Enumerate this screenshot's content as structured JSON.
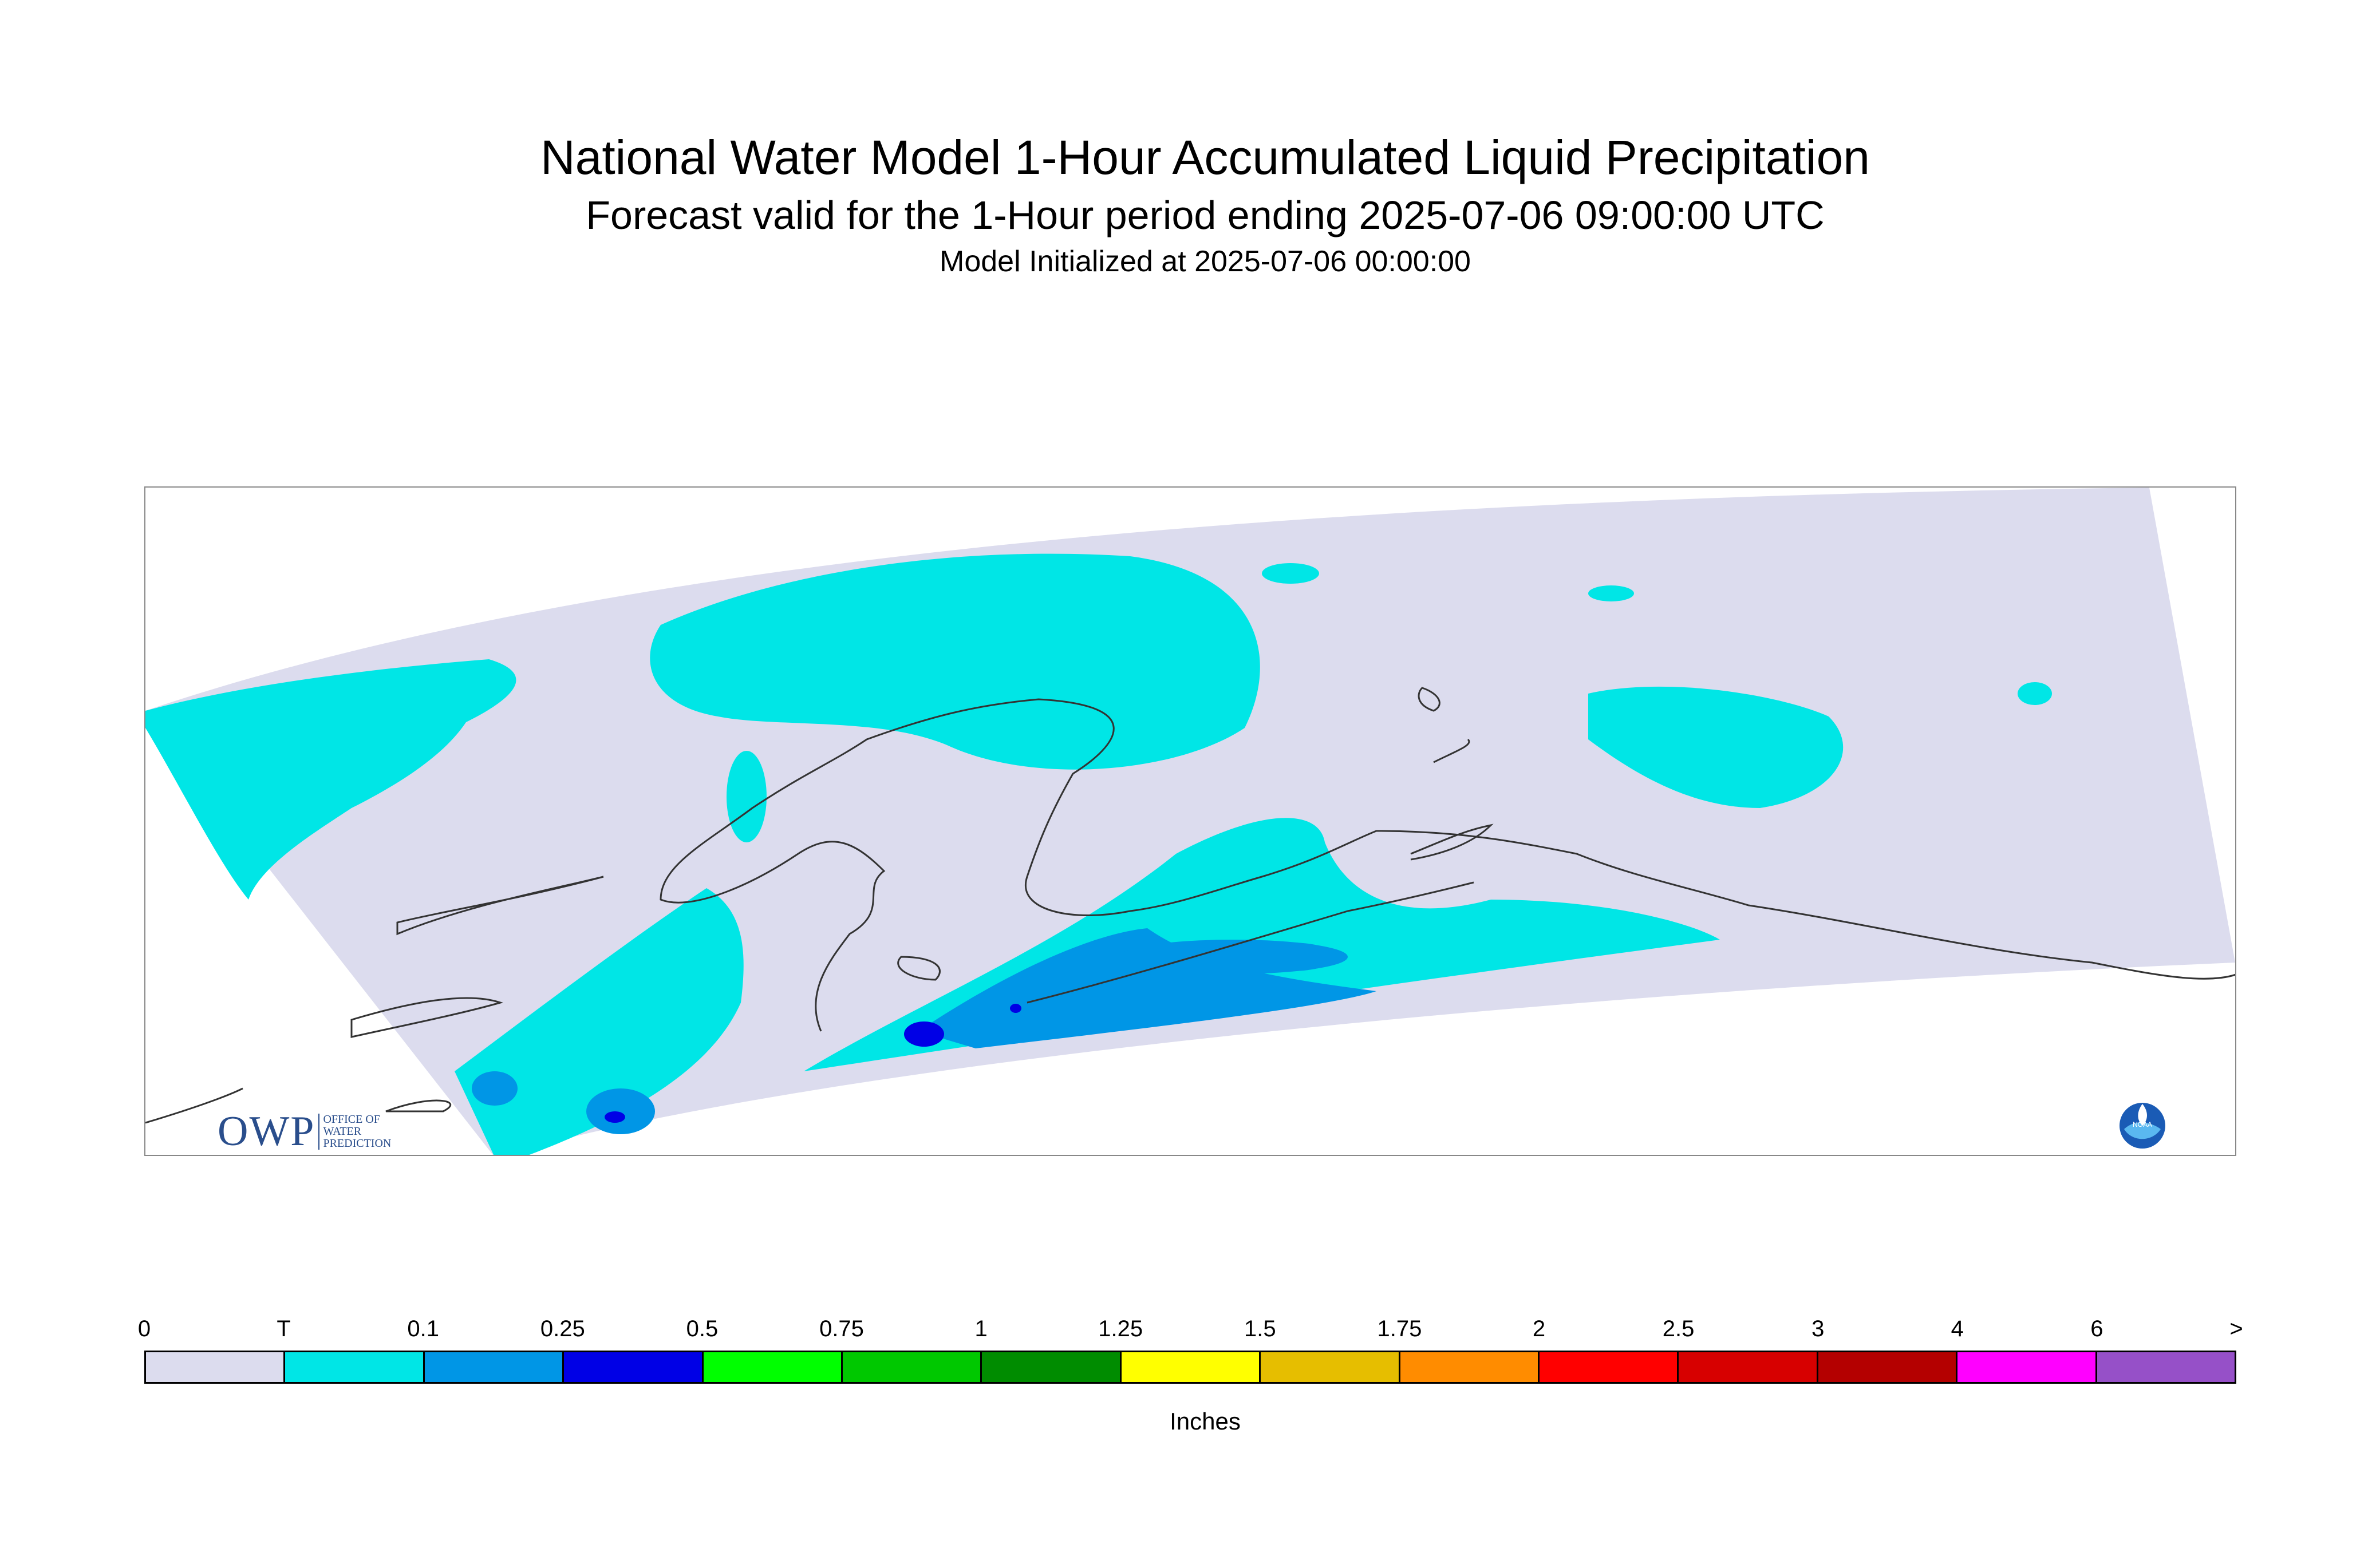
{
  "header": {
    "title": "National Water Model 1-Hour Accumulated Liquid Precipitation",
    "subtitle": "Forecast valid for the 1-Hour period ending 2025-07-06 09:00:00 UTC",
    "init": "Model Initialized at 2025-07-06 00:00:00"
  },
  "logos": {
    "owp_big": "OWP",
    "owp_small_1": "OFFICE OF",
    "owp_small_2": "WATER",
    "owp_small_3": "PREDICTION",
    "noaa": "NOAA"
  },
  "legend": {
    "labels": [
      "0",
      "T",
      "0.1",
      "0.25",
      "0.5",
      "0.75",
      "1",
      "1.25",
      "1.5",
      "1.75",
      "2",
      "2.5",
      "3",
      "4",
      "6",
      ">"
    ],
    "colors": [
      "#dcdcee",
      "#00e6e6",
      "#0096e6",
      "#0000e6",
      "#00ff00",
      "#00c800",
      "#008c00",
      "#ffff00",
      "#e6be00",
      "#ff8c00",
      "#ff0000",
      "#d70000",
      "#b40000",
      "#ff00ff",
      "#9650c8"
    ],
    "units": "Inches"
  },
  "colors": {
    "no_precip": "#dcdcee",
    "trace": "#00e6e6",
    "light": "#0096e6",
    "moderate": "#0000e6",
    "coastline": "#333333"
  }
}
